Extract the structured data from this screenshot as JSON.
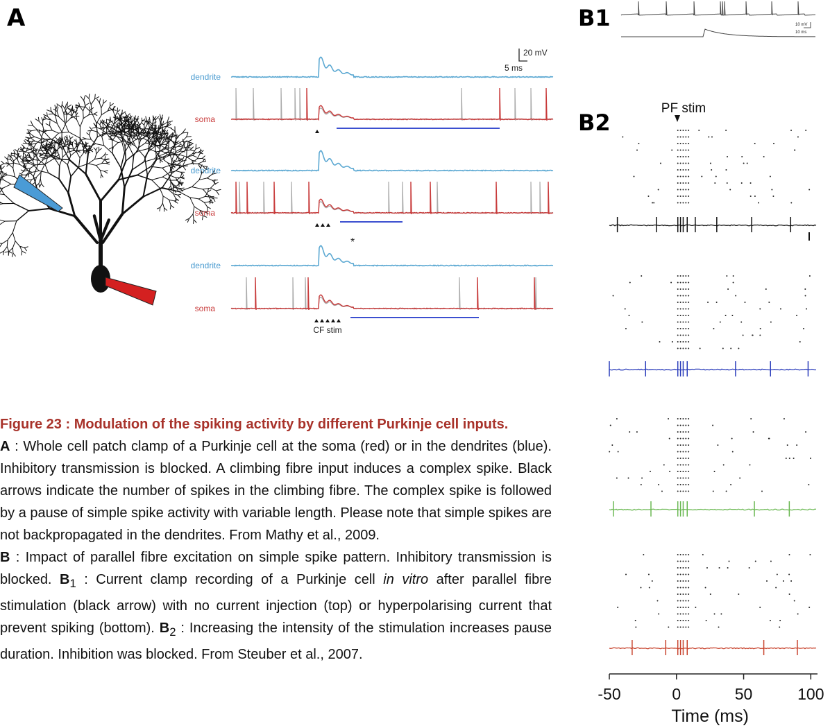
{
  "panel_a": {
    "label": "A",
    "dendrite_labels": [
      "dendrite",
      "dendrite",
      "dendrite"
    ],
    "soma_labels": [
      "soma",
      "soma",
      "soma"
    ],
    "scale_voltage": "20 mV",
    "scale_time": "5 ms",
    "asterisk": "*",
    "stim_label": "CF stim"
  },
  "panel_b1": {
    "label": "B1",
    "scale_voltage": "10 mV",
    "scale_time": "10 ms"
  },
  "panel_b2": {
    "label": "B2",
    "stim_label": "PF stim",
    "x_axis": {
      "label": "Time (ms)",
      "xlim": [
        -50,
        105
      ],
      "ticks": [
        -50,
        0,
        50,
        100
      ]
    }
  },
  "caption": {
    "title": "Figure 23 : Modulation of the spiking activity by different Purkinje cell inputs.",
    "a_label": "A",
    "a_text": " : Whole cell patch clamp of a Purkinje cell at the soma (red) or in the dendrites (blue). Inhibitory transmission is blocked. A climbing fibre input induces a complex spike. Black arrows indicate the number of spikes in the climbing fibre. The complex spike is followed by a pause of simple spike activity with variable length. Please note that simple spikes are not backpropagated in the dendrites. From Mathy et al., 2009.",
    "b_label": "B",
    "b_text1": " : Impact of parallel fibre excitation on simple spike pattern. Inhibitory transmission is blocked. ",
    "b1_label": "B",
    "b1_sub": "1",
    "b_text2": " : Current clamp recording of a Purkinje cell ",
    "b_italic": "in vitro",
    "b_text3": " after parallel fibre stimulation (black arrow) with no current injection (top) or hyperpolarising current that prevent spiking (bottom). ",
    "b2_label": "B",
    "b2_sub": "2",
    "b_text4": " : Increasing the intensity of the stimulation increases pause duration. Inhibition was blocked. From Steuber et al., 2007."
  }
}
